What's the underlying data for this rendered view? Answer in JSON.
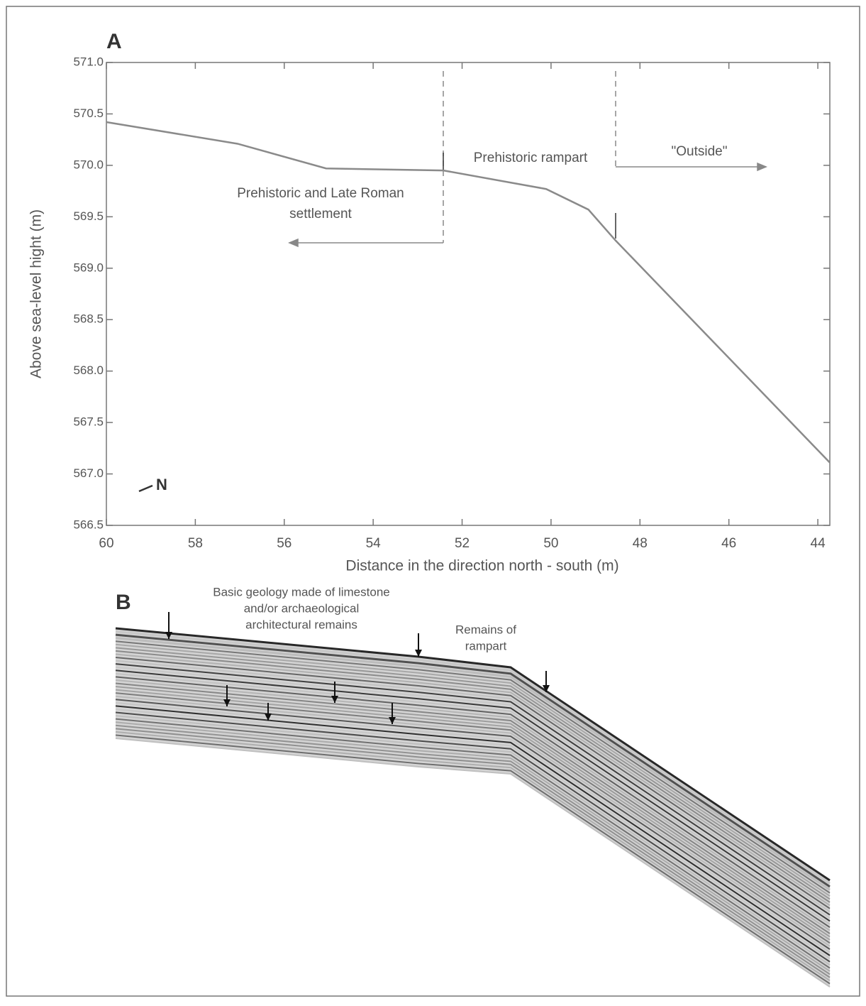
{
  "chart_data": {
    "type": "line",
    "panel_label": "A",
    "x_label": "Distance in the direction north - south (m)",
    "y_label": "Above sea-level hight (m)",
    "x": [
      60,
      57.05,
      55.06,
      52.42,
      50.11,
      49.16,
      48.55,
      43.73
    ],
    "values": [
      570.42,
      570.21,
      569.97,
      569.95,
      569.77,
      569.57,
      569.27,
      567.11
    ],
    "color": "#8a8a8a",
    "xlim": [
      60,
      43.73
    ],
    "xticks": [
      60,
      58,
      56,
      54,
      52,
      50,
      48,
      46,
      44
    ],
    "ylim": [
      566.5,
      571.0
    ],
    "yticks": [
      {
        "value": 566.5,
        "label": "566.5"
      },
      {
        "value": 567,
        "label": "567.0"
      },
      567.5,
      {
        "value": 568,
        "label": "568.0"
      },
      568.5,
      {
        "value": 569,
        "label": "569.0"
      },
      569.5,
      {
        "value": 570,
        "label": "570.0"
      },
      570.5,
      {
        "value": 571,
        "label": "571.0"
      }
    ],
    "annotations": [
      "Prehistoric and Late Roman",
      "settlement",
      "Prehistoric rampart",
      "\"Outside\""
    ],
    "north": "N"
  },
  "panel_b": {
    "label": "B",
    "annotations": [
      "Basic geology made of limestone",
      "and/or archaeological",
      "architectural remains",
      "Remains of",
      "rampart"
    ]
  }
}
